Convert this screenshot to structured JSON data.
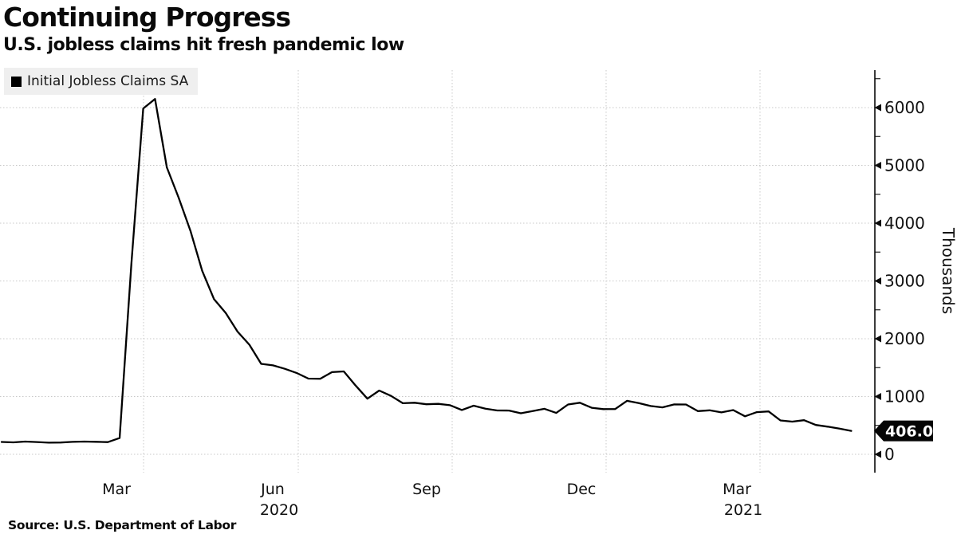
{
  "header": {
    "title": "Continuing Progress",
    "subtitle": "U.S. jobless claims hit fresh pandemic low"
  },
  "legend": {
    "label": "Initial Jobless Claims SA",
    "swatch_color": "#000000"
  },
  "footer": {
    "source": "Source: U.S. Department of Labor"
  },
  "chart_data": {
    "type": "line",
    "title": "Continuing Progress",
    "subtitle": "U.S. jobless claims hit fresh pandemic low",
    "grid": "dotted",
    "legend_position": "top-left",
    "last_value_label": "406.0",
    "x_axis": {
      "ticks": [
        {
          "month": "Mar",
          "year": ""
        },
        {
          "month": "Jun",
          "year": "2020"
        },
        {
          "month": "Sep",
          "year": ""
        },
        {
          "month": "Dec",
          "year": ""
        },
        {
          "month": "Mar",
          "year": "2021"
        }
      ]
    },
    "y_axis": {
      "unit": "Thousands",
      "min": 0,
      "max": 6500,
      "major_step": 1000,
      "minor_step": 500,
      "tick_labels": [
        "0",
        "1000",
        "2000",
        "3000",
        "4000",
        "5000",
        "6000"
      ]
    },
    "series": [
      {
        "name": "Initial Jobless Claims SA",
        "color": "#000000",
        "week_ending": [
          "2020-01-04",
          "2020-01-11",
          "2020-01-18",
          "2020-01-25",
          "2020-02-01",
          "2020-02-08",
          "2020-02-15",
          "2020-02-22",
          "2020-02-29",
          "2020-03-07",
          "2020-03-14",
          "2020-03-21",
          "2020-03-28",
          "2020-04-04",
          "2020-04-11",
          "2020-04-18",
          "2020-04-25",
          "2020-05-02",
          "2020-05-09",
          "2020-05-16",
          "2020-05-23",
          "2020-05-30",
          "2020-06-06",
          "2020-06-13",
          "2020-06-20",
          "2020-06-27",
          "2020-07-04",
          "2020-07-11",
          "2020-07-18",
          "2020-07-25",
          "2020-08-01",
          "2020-08-08",
          "2020-08-15",
          "2020-08-22",
          "2020-08-29",
          "2020-09-05",
          "2020-09-12",
          "2020-09-19",
          "2020-09-26",
          "2020-10-03",
          "2020-10-10",
          "2020-10-17",
          "2020-10-24",
          "2020-10-31",
          "2020-11-07",
          "2020-11-14",
          "2020-11-21",
          "2020-11-28",
          "2020-12-05",
          "2020-12-12",
          "2020-12-19",
          "2020-12-26",
          "2021-01-02",
          "2021-01-09",
          "2021-01-16",
          "2021-01-23",
          "2021-01-30",
          "2021-02-06",
          "2021-02-13",
          "2021-02-20",
          "2021-02-27",
          "2021-03-06",
          "2021-03-13",
          "2021-03-20",
          "2021-03-27",
          "2021-04-03",
          "2021-04-10",
          "2021-04-17",
          "2021-04-24",
          "2021-05-01",
          "2021-05-08",
          "2021-05-15",
          "2021-05-22"
        ],
        "values": [
          214,
          207,
          220,
          212,
          201,
          204,
          215,
          220,
          217,
          211,
          282,
          3307,
          5985,
          6149,
          4965,
          4442,
          3867,
          3176,
          2687,
          2446,
          2123,
          1897,
          1566,
          1540,
          1480,
          1408,
          1310,
          1308,
          1422,
          1435,
          1191,
          963,
          1104,
          1011,
          884,
          893,
          866,
          873,
          849,
          767,
          842,
          791,
          758,
          757,
          711,
          748,
          787,
          716,
          862,
          892,
          806,
          782,
          784,
          926,
          886,
          836,
          812,
          863,
          862,
          747,
          761,
          725,
          765,
          658,
          729,
          742,
          586,
          566,
          590,
          507,
          478,
          444,
          406
        ]
      }
    ]
  }
}
